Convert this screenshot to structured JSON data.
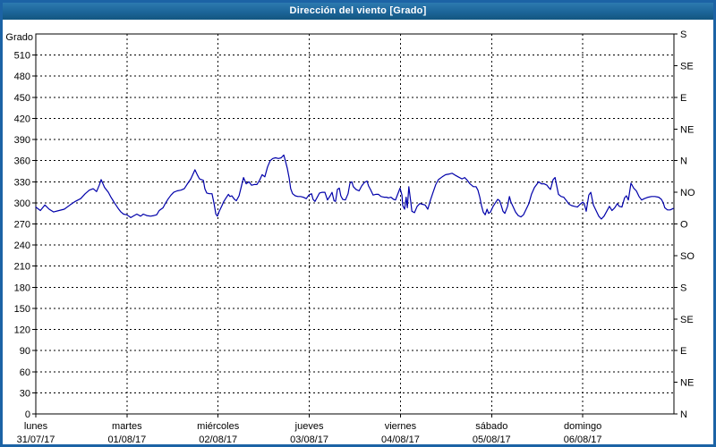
{
  "window": {
    "title": "Dirección del viento [Grado]"
  },
  "colors": {
    "frame": "#1c63a5",
    "titlebar_top": "#2d7ab0",
    "titlebar_bottom": "#135680",
    "title_text": "#ffffff",
    "axis": "#000000",
    "grid": "#000000",
    "line": "#0000aa",
    "background": "#ffffff"
  },
  "chart_data": {
    "type": "line",
    "title": "Dirección del viento [Grado]",
    "ylabel": "Grado",
    "ylim": [
      0,
      540
    ],
    "xlim_hours": [
      0,
      168
    ],
    "grid": "dashed",
    "y_left_ticks": [
      0,
      30,
      60,
      90,
      120,
      150,
      180,
      210,
      240,
      270,
      300,
      330,
      360,
      390,
      420,
      450,
      480,
      510
    ],
    "y_right_ticks": [
      {
        "deg": 0,
        "label": "N"
      },
      {
        "deg": 45,
        "label": "NE"
      },
      {
        "deg": 90,
        "label": "E"
      },
      {
        "deg": 135,
        "label": "SE"
      },
      {
        "deg": 180,
        "label": "S"
      },
      {
        "deg": 225,
        "label": "SO"
      },
      {
        "deg": 270,
        "label": "O"
      },
      {
        "deg": 315,
        "label": "NO"
      },
      {
        "deg": 360,
        "label": "N"
      },
      {
        "deg": 405,
        "label": "NE"
      },
      {
        "deg": 450,
        "label": "E"
      },
      {
        "deg": 495,
        "label": "SE"
      },
      {
        "deg": 540,
        "label": "S"
      }
    ],
    "x_ticks": [
      {
        "hour": 0,
        "day": "lunes",
        "date": "31/07/17"
      },
      {
        "hour": 24,
        "day": "martes",
        "date": "01/08/17"
      },
      {
        "hour": 48,
        "day": "miércoles",
        "date": "02/08/17"
      },
      {
        "hour": 72,
        "day": "jueves",
        "date": "03/08/17"
      },
      {
        "hour": 96,
        "day": "viernes",
        "date": "04/08/17"
      },
      {
        "hour": 120,
        "day": "sábado",
        "date": "05/08/17"
      },
      {
        "hour": 144,
        "day": "domingo",
        "date": "06/08/17"
      }
    ],
    "series": [
      {
        "name": "Dirección del viento",
        "color": "#0000aa",
        "points": [
          [
            0,
            294
          ],
          [
            1.2,
            289
          ],
          [
            2.4,
            297
          ],
          [
            3.5,
            291
          ],
          [
            4.7,
            287
          ],
          [
            6.1,
            289
          ],
          [
            7.5,
            291
          ],
          [
            9,
            297
          ],
          [
            10.4,
            302
          ],
          [
            11.8,
            306
          ],
          [
            13,
            313
          ],
          [
            14.1,
            318
          ],
          [
            15.1,
            320
          ],
          [
            16,
            316
          ],
          [
            16.7,
            325
          ],
          [
            17.2,
            333
          ],
          [
            18.1,
            322
          ],
          [
            19.1,
            315
          ],
          [
            19.8,
            308
          ],
          [
            20.7,
            300
          ],
          [
            21.7,
            292
          ],
          [
            22.4,
            287
          ],
          [
            23.1,
            284
          ],
          [
            24,
            283
          ],
          [
            25,
            279
          ],
          [
            25.9,
            282
          ],
          [
            26.6,
            284
          ],
          [
            27.6,
            281
          ],
          [
            28.3,
            284
          ],
          [
            29.2,
            282
          ],
          [
            30.2,
            281
          ],
          [
            31.1,
            282
          ],
          [
            31.8,
            283
          ],
          [
            32.5,
            289
          ],
          [
            33.5,
            293
          ],
          [
            34.2,
            300
          ],
          [
            34.9,
            306
          ],
          [
            35.6,
            311
          ],
          [
            36.3,
            315
          ],
          [
            37.2,
            317
          ],
          [
            38.2,
            318
          ],
          [
            39.1,
            320
          ],
          [
            39.8,
            326
          ],
          [
            40.8,
            334
          ],
          [
            41.5,
            342
          ],
          [
            41.9,
            347
          ],
          [
            42.6,
            339
          ],
          [
            43.1,
            334
          ],
          [
            43.6,
            333
          ],
          [
            44.1,
            332
          ],
          [
            44.5,
            320
          ],
          [
            45,
            314
          ],
          [
            45.7,
            313
          ],
          [
            46.4,
            313
          ],
          [
            46.9,
            300
          ],
          [
            47.4,
            284
          ],
          [
            47.8,
            281
          ],
          [
            48.3,
            288
          ],
          [
            49,
            296
          ],
          [
            49.5,
            302
          ],
          [
            50.2,
            308
          ],
          [
            50.7,
            312
          ],
          [
            51.1,
            309
          ],
          [
            51.6,
            310
          ],
          [
            52.3,
            305
          ],
          [
            52.8,
            303
          ],
          [
            53.5,
            310
          ],
          [
            54.2,
            325
          ],
          [
            54.7,
            336
          ],
          [
            55.4,
            327
          ],
          [
            56.1,
            330
          ],
          [
            56.8,
            325
          ],
          [
            57.5,
            326
          ],
          [
            58.2,
            326
          ],
          [
            58.9,
            332
          ],
          [
            59.6,
            340
          ],
          [
            60.3,
            337
          ],
          [
            61,
            351
          ],
          [
            61.7,
            360
          ],
          [
            62.4,
            363
          ],
          [
            63.1,
            364
          ],
          [
            63.9,
            363
          ],
          [
            64.6,
            364
          ],
          [
            65.3,
            368
          ],
          [
            65.7,
            360
          ],
          [
            66.2,
            349
          ],
          [
            66.7,
            335
          ],
          [
            67.1,
            320
          ],
          [
            67.6,
            313
          ],
          [
            68.3,
            310
          ],
          [
            69,
            309
          ],
          [
            69.7,
            309
          ],
          [
            70.4,
            308
          ],
          [
            71.2,
            306
          ],
          [
            71.9,
            311
          ],
          [
            72.6,
            313
          ],
          [
            73,
            305
          ],
          [
            73.5,
            302
          ],
          [
            74.2,
            309
          ],
          [
            74.7,
            314
          ],
          [
            75.4,
            315
          ],
          [
            76.1,
            315
          ],
          [
            76.8,
            304
          ],
          [
            77.5,
            310
          ],
          [
            78,
            315
          ],
          [
            78.5,
            303
          ],
          [
            78.9,
            302
          ],
          [
            79.4,
            319
          ],
          [
            79.9,
            321
          ],
          [
            80.3,
            310
          ],
          [
            80.8,
            305
          ],
          [
            81.5,
            304
          ],
          [
            82.2,
            313
          ],
          [
            82.7,
            328
          ],
          [
            83.2,
            330
          ],
          [
            83.6,
            323
          ],
          [
            84.3,
            319
          ],
          [
            85.1,
            317
          ],
          [
            85.8,
            324
          ],
          [
            86.5,
            329
          ],
          [
            87.2,
            331
          ],
          [
            87.6,
            324
          ],
          [
            88.1,
            319
          ],
          [
            88.8,
            311
          ],
          [
            89.5,
            312
          ],
          [
            90.2,
            312
          ],
          [
            90.9,
            309
          ],
          [
            91.7,
            308
          ],
          [
            92.4,
            308
          ],
          [
            92.8,
            307
          ],
          [
            93.5,
            308
          ],
          [
            94.2,
            305
          ],
          [
            94.7,
            304
          ],
          [
            95.4,
            314
          ],
          [
            95.9,
            321
          ],
          [
            96.4,
            311
          ],
          [
            96.6,
            296
          ],
          [
            97.1,
            291
          ],
          [
            97.5,
            308
          ],
          [
            97.8,
            293
          ],
          [
            98.2,
            323
          ],
          [
            98.7,
            302
          ],
          [
            99,
            288
          ],
          [
            99.7,
            286
          ],
          [
            100.4,
            295
          ],
          [
            101.1,
            299
          ],
          [
            101.8,
            298
          ],
          [
            102.5,
            297
          ],
          [
            103.2,
            291
          ],
          [
            103.9,
            304
          ],
          [
            104.6,
            315
          ],
          [
            105.3,
            326
          ],
          [
            106,
            333
          ],
          [
            107,
            337
          ],
          [
            107.9,
            340
          ],
          [
            108.9,
            341
          ],
          [
            109.6,
            342
          ],
          [
            110.5,
            339
          ],
          [
            111.2,
            337
          ],
          [
            112.2,
            334
          ],
          [
            112.9,
            336
          ],
          [
            113.6,
            332
          ],
          [
            114.3,
            327
          ],
          [
            115.2,
            323
          ],
          [
            115.9,
            323
          ],
          [
            116.4,
            318
          ],
          [
            116.9,
            308
          ],
          [
            117.3,
            297
          ],
          [
            117.8,
            287
          ],
          [
            118.3,
            283
          ],
          [
            118.8,
            291
          ],
          [
            119.2,
            285
          ],
          [
            119.7,
            287
          ],
          [
            120.4,
            295
          ],
          [
            121.1,
            301
          ],
          [
            121.6,
            305
          ],
          [
            122.1,
            303
          ],
          [
            122.5,
            297
          ],
          [
            123,
            288
          ],
          [
            123.5,
            285
          ],
          [
            124.2,
            295
          ],
          [
            124.7,
            309
          ],
          [
            125.1,
            301
          ],
          [
            125.6,
            295
          ],
          [
            126.3,
            287
          ],
          [
            127,
            282
          ],
          [
            127.7,
            280
          ],
          [
            128.4,
            283
          ],
          [
            129.1,
            291
          ],
          [
            129.8,
            299
          ],
          [
            130.5,
            312
          ],
          [
            131.3,
            322
          ],
          [
            132,
            327
          ],
          [
            132.4,
            330
          ],
          [
            133.1,
            327
          ],
          [
            133.8,
            327
          ],
          [
            134.6,
            325
          ],
          [
            135,
            322
          ],
          [
            135.5,
            319
          ],
          [
            136.2,
            333
          ],
          [
            136.7,
            336
          ],
          [
            137.1,
            325
          ],
          [
            137.6,
            312
          ],
          [
            138.3,
            309
          ],
          [
            139,
            308
          ],
          [
            139.7,
            303
          ],
          [
            140.4,
            298
          ],
          [
            141.1,
            296
          ],
          [
            141.8,
            295
          ],
          [
            142.6,
            294
          ],
          [
            143.3,
            298
          ],
          [
            144,
            301
          ],
          [
            144.4,
            299
          ],
          [
            144.9,
            288
          ],
          [
            145.6,
            311
          ],
          [
            146.1,
            315
          ],
          [
            146.8,
            297
          ],
          [
            147.5,
            289
          ],
          [
            148.2,
            281
          ],
          [
            148.9,
            277
          ],
          [
            149.6,
            281
          ],
          [
            150.3,
            288
          ],
          [
            151,
            295
          ],
          [
            151.7,
            289
          ],
          [
            152.4,
            293
          ],
          [
            153.1,
            299
          ],
          [
            153.6,
            295
          ],
          [
            154.3,
            294
          ],
          [
            155,
            307
          ],
          [
            155.5,
            310
          ],
          [
            156,
            304
          ],
          [
            156.7,
            328
          ],
          [
            157.4,
            321
          ],
          [
            158.1,
            317
          ],
          [
            158.8,
            309
          ],
          [
            159.5,
            304
          ],
          [
            160.2,
            306
          ],
          [
            161.2,
            308
          ],
          [
            162.1,
            309
          ],
          [
            163,
            309
          ],
          [
            164,
            308
          ],
          [
            164.7,
            305
          ],
          [
            165.2,
            300
          ],
          [
            165.6,
            293
          ],
          [
            166.3,
            290
          ],
          [
            167,
            290
          ],
          [
            167.8,
            292
          ]
        ]
      }
    ]
  }
}
